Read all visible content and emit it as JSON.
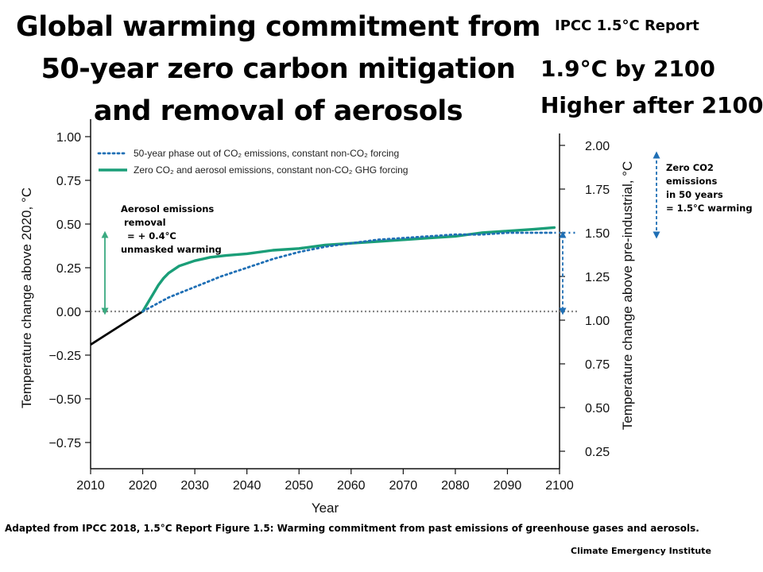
{
  "title_lines": [
    "Global warming commitment from",
    "50-year zero carbon mitigation",
    "and removal of aerosols"
  ],
  "report_label": "IPCC 1.5°C Report",
  "headline": [
    "1.9°C by 2100",
    "Higher after 2100"
  ],
  "aerosol_annotation": "Aerosol emissions\n removal\n  = + 0.4°C\nunmasked warming",
  "zero_co2_annotation": "Zero CO2\nemissions\nin 50 years\n= 1.5°C warming",
  "source_note": "Adapted from IPCC 2018, 1.5°C  Report Figure 1.5:  Warming commitment from past emissions of greenhouse gases and aerosols.",
  "credit": "Climate Emergency Institute",
  "colors": {
    "co2_phaseout": "#1f6fb5",
    "zero_emissions": "#1a9e78",
    "historical": "#000000",
    "baseline": "#888888",
    "aerosol_arrow": "#3aaa80",
    "co2_arrow": "#1f6fb5"
  },
  "chart_data": {
    "type": "line",
    "xlabel": "Year",
    "ylabel": "Temperature change above 2020, °C",
    "y2label": "Temperature change above pre-industrial, °C",
    "xlim": [
      2010,
      2100
    ],
    "ylim": [
      -0.9,
      1.1
    ],
    "y2_offset": 1.05,
    "x_ticks": [
      2010,
      2020,
      2030,
      2040,
      2050,
      2060,
      2070,
      2080,
      2090,
      2100
    ],
    "x_tick_labels": [
      "2010",
      "2020",
      "2030",
      "2040",
      "2050",
      "2060",
      "2070",
      "2080",
      "2090",
      "2100"
    ],
    "y_ticks": [
      -0.75,
      -0.5,
      -0.25,
      0,
      0.25,
      0.5,
      0.75,
      1.0
    ],
    "y_tick_labels": [
      "−0.75",
      "−0.50",
      "−0.25",
      "0.00",
      "0.25",
      "0.50",
      "0.75",
      "1.00"
    ],
    "y2_ticks": [
      0.25,
      0.5,
      0.75,
      1.0,
      1.25,
      1.5,
      1.75,
      2.0
    ],
    "y2_tick_labels": [
      "0.25",
      "0.50",
      "0.75",
      "1.00",
      "1.25",
      "1.50",
      "1.75",
      "2.00"
    ],
    "legend_location": "top-left",
    "series": [
      {
        "name": "50-year phase out of CO₂ emissions, constant non-CO₂ forcing",
        "style": "dotted",
        "x": [
          2020,
          2025,
          2030,
          2035,
          2040,
          2045,
          2050,
          2055,
          2060,
          2065,
          2070,
          2075,
          2080,
          2085,
          2090,
          2095,
          2099
        ],
        "y": [
          0.0,
          0.08,
          0.14,
          0.2,
          0.25,
          0.3,
          0.34,
          0.37,
          0.39,
          0.41,
          0.42,
          0.43,
          0.44,
          0.44,
          0.45,
          0.45,
          0.45
        ]
      },
      {
        "name": "Zero CO₂ and aerosol emissions, constant non-CO₂ GHG forcing",
        "style": "solid",
        "x": [
          2020,
          2021,
          2022,
          2023,
          2024,
          2025,
          2027,
          2030,
          2033,
          2036,
          2040,
          2045,
          2050,
          2055,
          2060,
          2065,
          2070,
          2075,
          2080,
          2085,
          2090,
          2095,
          2099
        ],
        "y": [
          0.0,
          0.05,
          0.1,
          0.15,
          0.19,
          0.22,
          0.26,
          0.29,
          0.31,
          0.32,
          0.33,
          0.35,
          0.36,
          0.38,
          0.39,
          0.4,
          0.41,
          0.42,
          0.43,
          0.45,
          0.46,
          0.47,
          0.48
        ]
      },
      {
        "name": "",
        "style": "historical",
        "x": [
          2010,
          2020
        ],
        "y": [
          -0.19,
          0.0
        ]
      }
    ]
  }
}
